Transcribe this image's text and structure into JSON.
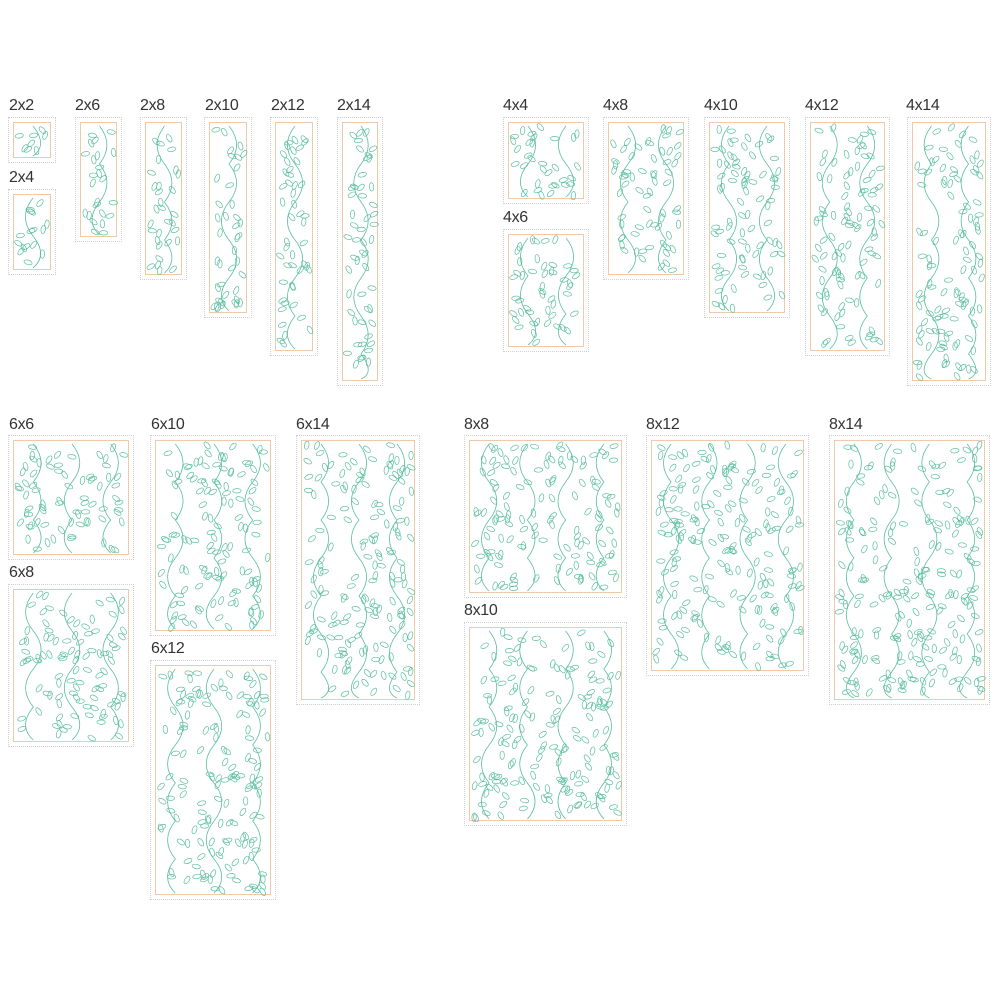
{
  "colors": {
    "vine": "#5bbf9f",
    "inner_border": "#f0c9a8",
    "outer_border": "#cfcfcf",
    "label": "#333333"
  },
  "blocks": [
    {
      "label": "2x2"
    },
    {
      "label": "2x4"
    },
    {
      "label": "2x6"
    },
    {
      "label": "2x8"
    },
    {
      "label": "2x10"
    },
    {
      "label": "2x12"
    },
    {
      "label": "2x14"
    },
    {
      "label": "4x4"
    },
    {
      "label": "4x6"
    },
    {
      "label": "4x8"
    },
    {
      "label": "4x10"
    },
    {
      "label": "4x12"
    },
    {
      "label": "4x14"
    },
    {
      "label": "6x6"
    },
    {
      "label": "6x8"
    },
    {
      "label": "6x10"
    },
    {
      "label": "6x12"
    },
    {
      "label": "6x14"
    },
    {
      "label": "8x8"
    },
    {
      "label": "8x10"
    },
    {
      "label": "8x12"
    },
    {
      "label": "8x14"
    }
  ]
}
